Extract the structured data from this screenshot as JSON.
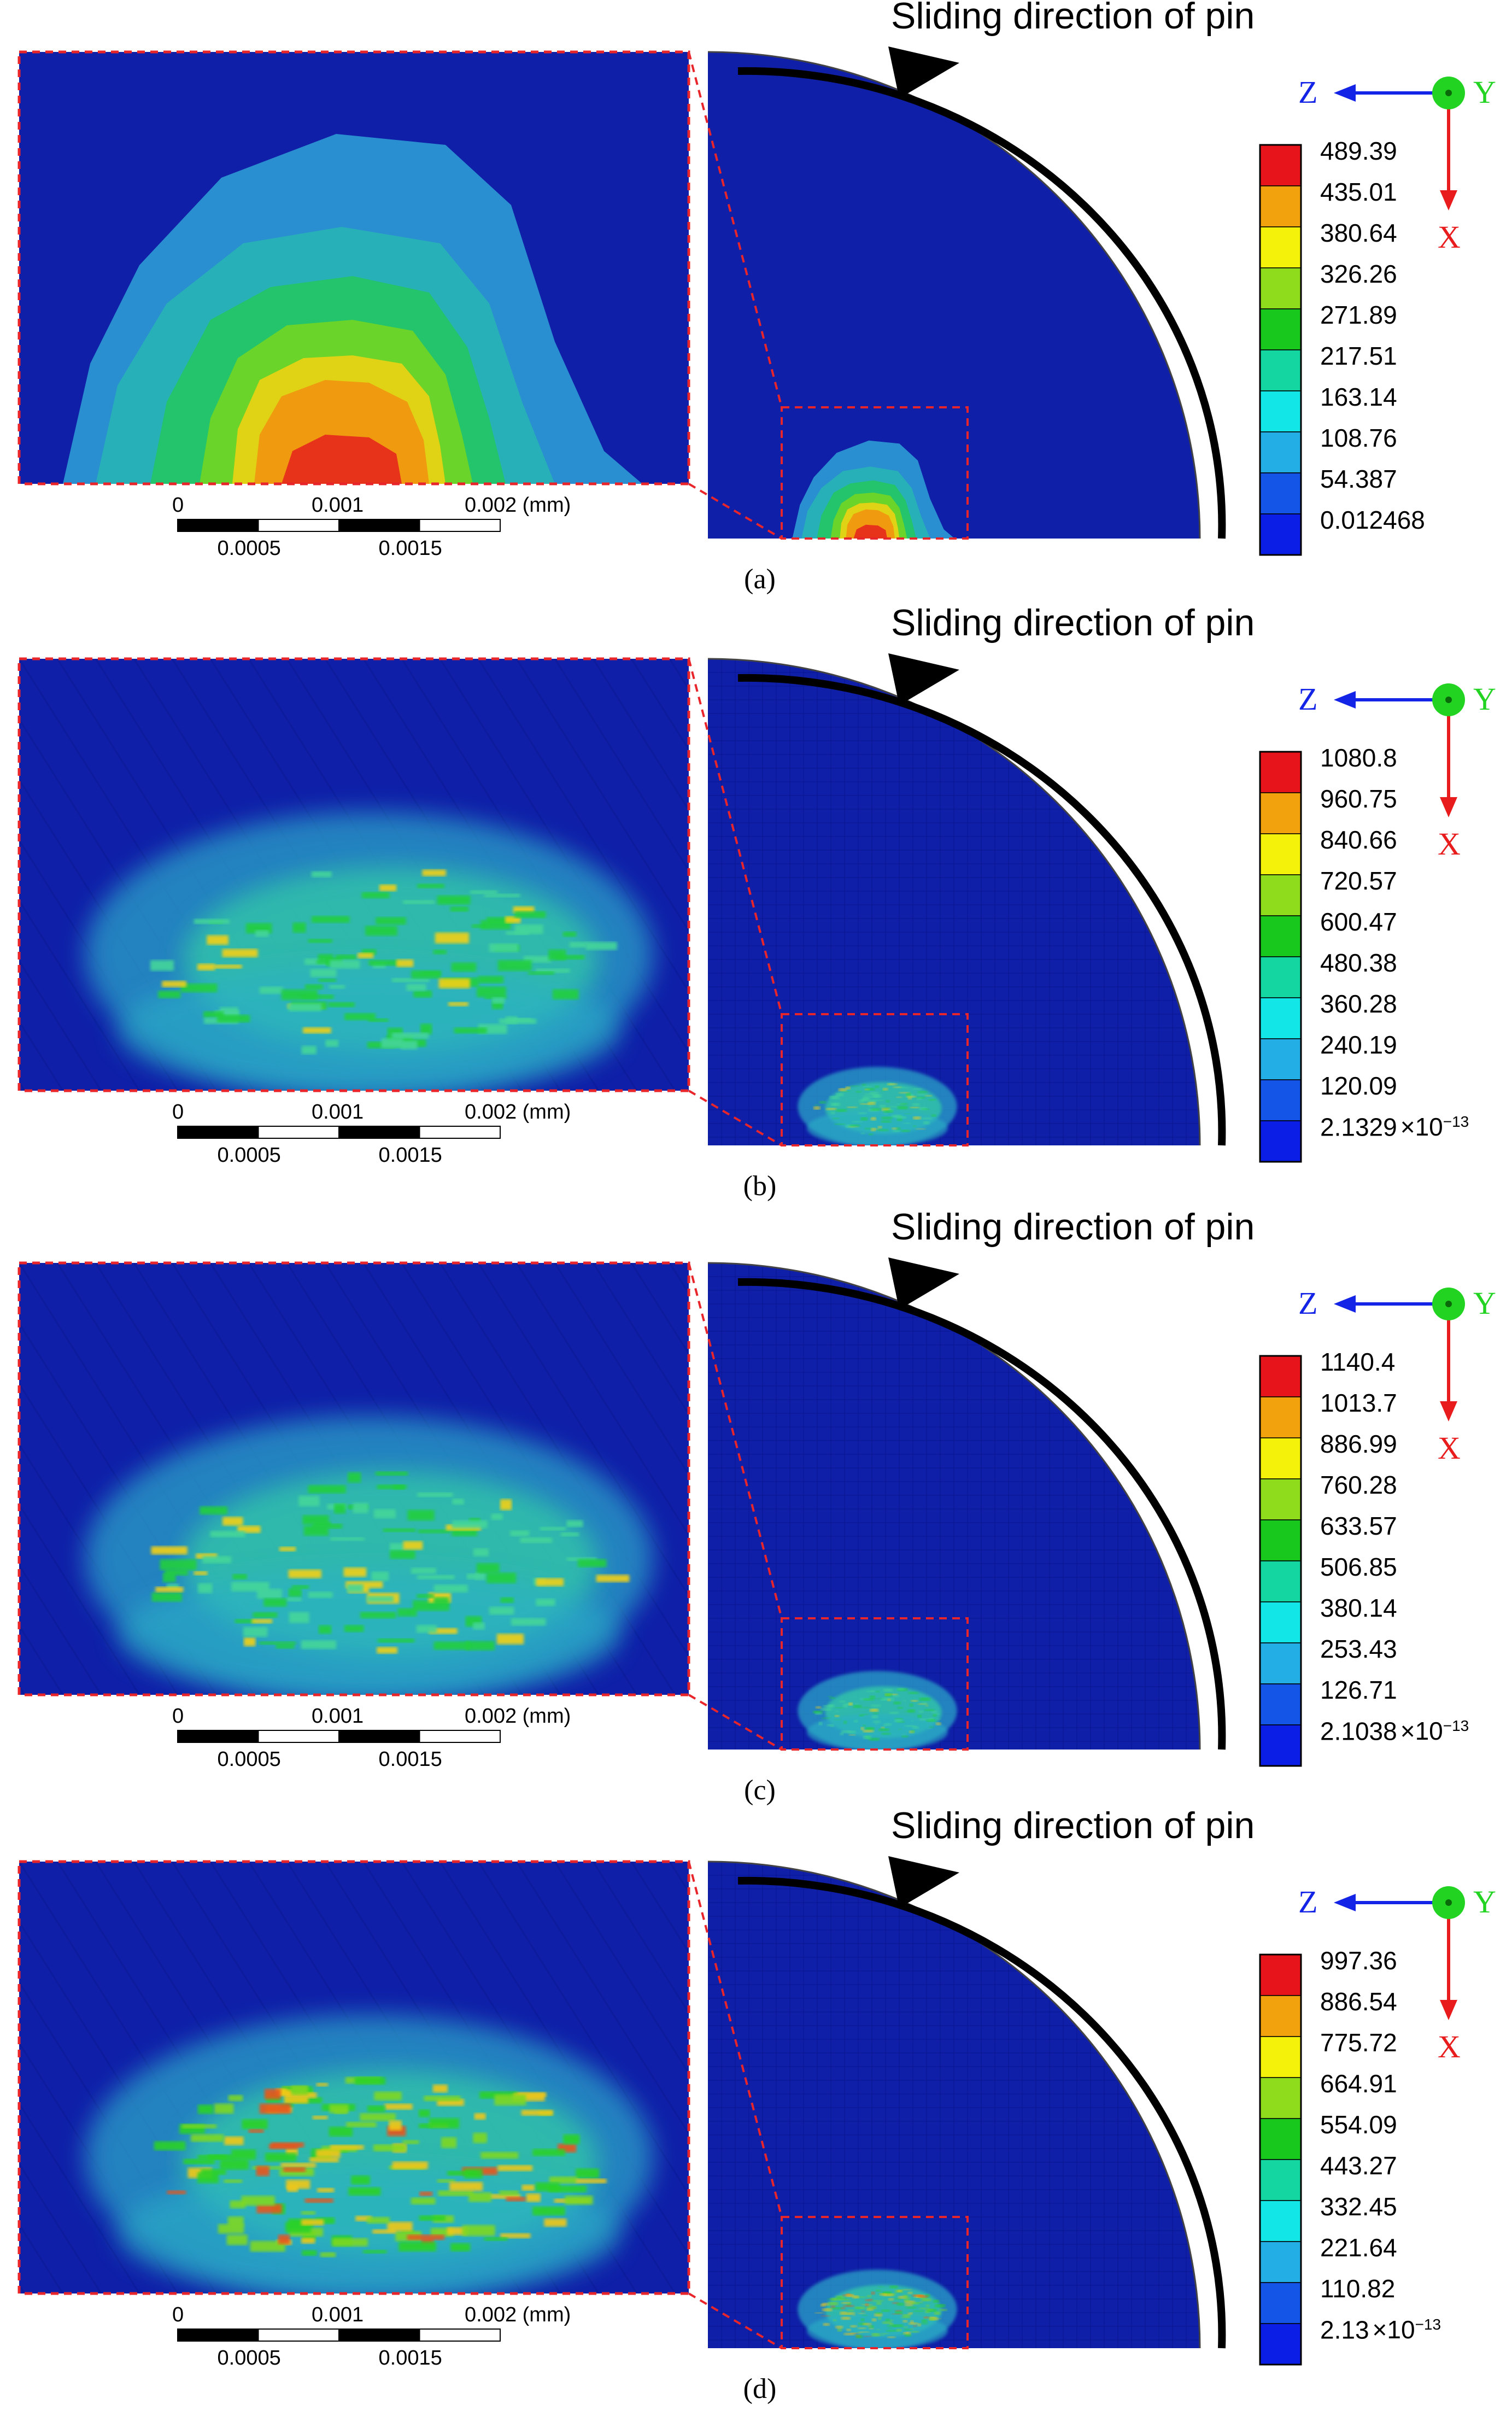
{
  "panels": [
    {
      "label": "(a)",
      "title": "Sliding direction of pin",
      "legend": [
        "489.39",
        "435.01",
        "380.64",
        "326.26",
        "271.89",
        "217.51",
        "163.14",
        "108.76",
        "54.387",
        "0.012468"
      ],
      "legend_exp": "",
      "style": "smooth"
    },
    {
      "label": "(b)",
      "title": "Sliding direction of pin",
      "legend": [
        "1080.8",
        "960.75",
        "840.66",
        "720.57",
        "600.47",
        "480.38",
        "360.28",
        "240.19",
        "120.09",
        "2.1329"
      ],
      "legend_exp": "×10",
      "legend_exp_power": "−13",
      "style": "speckle"
    },
    {
      "label": "(c)",
      "title": "Sliding direction of pin",
      "legend": [
        "1140.4",
        "1013.7",
        "886.99",
        "760.28",
        "633.57",
        "506.85",
        "380.14",
        "253.43",
        "126.71",
        "2.1038"
      ],
      "legend_exp": "×10",
      "legend_exp_power": "−13",
      "style": "speckle"
    },
    {
      "label": "(d)",
      "title": "Sliding direction of pin",
      "legend": [
        "997.36",
        "886.54",
        "775.72",
        "664.91",
        "554.09",
        "443.27",
        "332.45",
        "221.64",
        "110.82",
        "2.13"
      ],
      "legend_exp": "×10",
      "legend_exp_power": "−13",
      "style": "speckle-strong"
    }
  ],
  "axes": {
    "z": "Z",
    "y": "Y",
    "x": "X"
  },
  "scale_bar": {
    "top_ticks": [
      "0",
      "0.001",
      "0.002 (mm)"
    ],
    "bottom_ticks": [
      "0.0005",
      "0.0015"
    ]
  },
  "legend_colors": [
    "#e8141b",
    "#f2a20c",
    "#f4f20a",
    "#8fdc1c",
    "#19c81c",
    "#14d6a0",
    "#12e6e6",
    "#24aee6",
    "#1454e6",
    "#0a1ee6"
  ],
  "colors": {
    "background_blue": "#0f1fa8",
    "dashed_red": "#e8252a",
    "axis_z": "#1424e6",
    "axis_y": "#22d322",
    "axis_x": "#e81c1c"
  }
}
